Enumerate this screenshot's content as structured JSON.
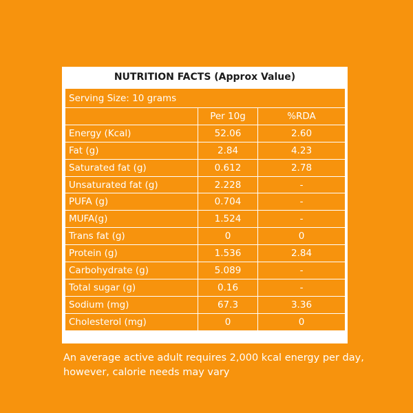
{
  "title": "NUTRITION FACTS (Approx Value)",
  "serving_size": "Serving Size: 10 grams",
  "columns": {
    "per": "Per 10g",
    "rda": "%RDA"
  },
  "rows": [
    {
      "name": "Energy (Kcal)",
      "per": "52.06",
      "rda": "2.60"
    },
    {
      "name": "Fat (g)",
      "per": "2.84",
      "rda": "4.23"
    },
    {
      "name": "Saturated fat (g)",
      "per": "0.612",
      "rda": "2.78"
    },
    {
      "name": "Unsaturated fat (g)",
      "per": "2.228",
      "rda": "-"
    },
    {
      "name": "PUFA (g)",
      "per": "0.704",
      "rda": "-"
    },
    {
      "name": "MUFA(g)",
      "per": "1.524",
      "rda": "-"
    },
    {
      "name": "Trans fat  (g)",
      "per": "0",
      "rda": "0"
    },
    {
      "name": "Protein (g)",
      "per": "1.536",
      "rda": "2.84"
    },
    {
      "name": "Carbohydrate (g)",
      "per": "5.089",
      "rda": "-"
    },
    {
      "name": "Total sugar (g)",
      "per": "0.16",
      "rda": "-"
    },
    {
      "name": "Sodium (mg)",
      "per": "67.3",
      "rda": "3.36"
    },
    {
      "name": "Cholesterol (mg)",
      "per": "0",
      "rda": "0"
    }
  ],
  "footnote": "An average active adult requires 2,000 kcal energy per day, however, calorie needs may vary",
  "colors": {
    "background": "#f7930d",
    "panel": "#ffffff",
    "text": "#ffffff",
    "title": "#1a1a1a"
  }
}
